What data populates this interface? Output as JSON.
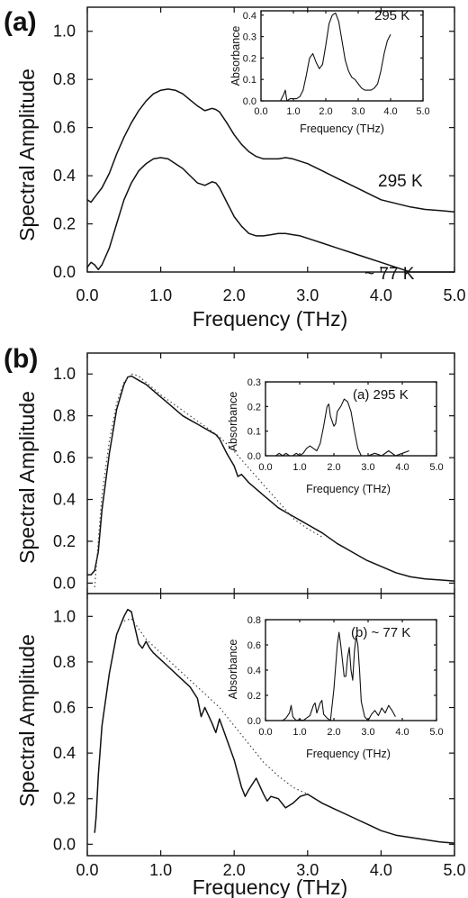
{
  "figure": {
    "panel_a_label": "(a)",
    "panel_b_label": "(b)"
  },
  "chart_data": [
    {
      "id": "a-main",
      "type": "line",
      "xlabel": "Frequency (THz)",
      "ylabel": "Spectral Amplitude",
      "xlim": [
        0,
        5
      ],
      "ylim": [
        0,
        1.1
      ],
      "xticks": [
        0,
        1,
        2,
        3,
        4,
        5
      ],
      "yticks": [
        0,
        0.2,
        0.4,
        0.6,
        0.8,
        1.0
      ],
      "xtick_labels": [
        "0.0",
        "1.0",
        "2.0",
        "3.0",
        "4.0",
        "5.0"
      ],
      "ytick_labels": [
        "0.0",
        "0.2",
        "0.4",
        "0.6",
        "0.8",
        "1.0"
      ],
      "annotations": [
        "295 K",
        "~ 77 K"
      ],
      "grid": false,
      "series": [
        {
          "x": [
            0,
            0.05,
            0.1,
            0.15,
            0.2,
            0.3,
            0.4,
            0.5,
            0.6,
            0.7,
            0.8,
            0.9,
            1.0,
            1.1,
            1.2,
            1.3,
            1.4,
            1.5,
            1.6,
            1.7,
            1.75,
            1.8,
            1.9,
            2.0,
            2.1,
            2.2,
            2.3,
            2.4,
            2.5,
            2.6,
            2.7,
            2.8,
            2.9,
            3.0,
            3.2,
            3.4,
            3.6,
            3.8,
            4.0,
            4.2,
            4.4,
            4.6,
            4.8,
            5.0
          ],
          "y": [
            0.3,
            0.29,
            0.31,
            0.33,
            0.35,
            0.41,
            0.49,
            0.56,
            0.62,
            0.67,
            0.71,
            0.74,
            0.755,
            0.76,
            0.755,
            0.74,
            0.715,
            0.69,
            0.67,
            0.68,
            0.675,
            0.665,
            0.62,
            0.57,
            0.53,
            0.5,
            0.48,
            0.47,
            0.47,
            0.47,
            0.475,
            0.47,
            0.46,
            0.45,
            0.42,
            0.39,
            0.36,
            0.33,
            0.3,
            0.285,
            0.27,
            0.26,
            0.255,
            0.25
          ]
        },
        {
          "x": [
            0,
            0.05,
            0.1,
            0.15,
            0.2,
            0.3,
            0.4,
            0.5,
            0.6,
            0.7,
            0.8,
            0.9,
            1.0,
            1.1,
            1.2,
            1.3,
            1.4,
            1.5,
            1.6,
            1.7,
            1.75,
            1.8,
            1.9,
            2.0,
            2.1,
            2.2,
            2.3,
            2.4,
            2.5,
            2.6,
            2.7,
            2.8,
            2.9,
            3.0,
            3.2,
            3.4,
            3.6,
            3.8,
            4.0,
            4.2,
            4.4,
            4.6,
            4.8,
            5.0
          ],
          "y": [
            0.02,
            0.04,
            0.03,
            0.01,
            0.03,
            0.1,
            0.2,
            0.3,
            0.37,
            0.42,
            0.45,
            0.47,
            0.475,
            0.47,
            0.45,
            0.43,
            0.4,
            0.37,
            0.36,
            0.375,
            0.37,
            0.35,
            0.29,
            0.23,
            0.19,
            0.16,
            0.15,
            0.15,
            0.155,
            0.16,
            0.16,
            0.155,
            0.15,
            0.14,
            0.12,
            0.1,
            0.08,
            0.06,
            0.04,
            0.02,
            0.0,
            0.0,
            0.0,
            0.0
          ]
        }
      ]
    },
    {
      "id": "a-inset",
      "type": "line",
      "xlabel": "Frequency (THz)",
      "ylabel": "Absorbance",
      "xlim": [
        0,
        5
      ],
      "ylim": [
        0,
        0.42
      ],
      "xticks": [
        0,
        1,
        2,
        3,
        4,
        5
      ],
      "yticks": [
        0,
        0.1,
        0.2,
        0.3,
        0.4
      ],
      "xtick_labels": [
        "0.0",
        "1.0",
        "2.0",
        "3.0",
        "4.0",
        "5.0"
      ],
      "ytick_labels": [
        "0.0",
        "0.1",
        "0.2",
        "0.3",
        "0.4"
      ],
      "annotations": [
        "295 K"
      ],
      "series": [
        {
          "x": [
            0.6,
            0.7,
            0.75,
            0.8,
            0.9,
            1.0,
            1.1,
            1.2,
            1.3,
            1.4,
            1.5,
            1.6,
            1.7,
            1.8,
            1.9,
            2.0,
            2.1,
            2.2,
            2.3,
            2.4,
            2.5,
            2.6,
            2.7,
            2.8,
            2.9,
            3.0,
            3.1,
            3.2,
            3.3,
            3.4,
            3.5,
            3.6,
            3.7,
            3.8,
            3.9,
            4.0
          ],
          "y": [
            0.0,
            0.03,
            0.05,
            0.0,
            0.01,
            0.01,
            0.01,
            0.02,
            0.05,
            0.12,
            0.2,
            0.22,
            0.18,
            0.15,
            0.17,
            0.26,
            0.36,
            0.4,
            0.41,
            0.37,
            0.28,
            0.19,
            0.14,
            0.11,
            0.1,
            0.08,
            0.06,
            0.05,
            0.05,
            0.05,
            0.06,
            0.08,
            0.14,
            0.22,
            0.28,
            0.31
          ]
        }
      ]
    },
    {
      "id": "b-top",
      "type": "line",
      "xlabel": "",
      "ylabel": "Spectral Amplitude",
      "xlim": [
        0,
        5
      ],
      "ylim": [
        -0.05,
        1.1
      ],
      "xticks": [
        0,
        1,
        2,
        3,
        4,
        5
      ],
      "yticks": [
        0,
        0.2,
        0.4,
        0.6,
        0.8,
        1.0
      ],
      "xtick_labels": [],
      "ytick_labels": [
        "0.0",
        "0.2",
        "0.4",
        "0.6",
        "0.8",
        "1.0"
      ],
      "series": [
        {
          "x": [
            0,
            0.05,
            0.1,
            0.15,
            0.2,
            0.3,
            0.4,
            0.5,
            0.55,
            0.6,
            0.7,
            0.8,
            0.9,
            1.0,
            1.1,
            1.2,
            1.3,
            1.4,
            1.5,
            1.6,
            1.7,
            1.75,
            1.8,
            1.9,
            2.0,
            2.05,
            2.1,
            2.2,
            2.3,
            2.4,
            2.5,
            2.6,
            2.7,
            2.8,
            2.9,
            3.0,
            3.2,
            3.4,
            3.6,
            3.8,
            4.0,
            4.2,
            4.4,
            4.6,
            4.8,
            5.0
          ],
          "y": [
            0.04,
            0.04,
            0.06,
            0.15,
            0.35,
            0.62,
            0.83,
            0.95,
            0.985,
            0.99,
            0.97,
            0.95,
            0.92,
            0.89,
            0.86,
            0.83,
            0.8,
            0.78,
            0.76,
            0.74,
            0.72,
            0.71,
            0.69,
            0.62,
            0.56,
            0.51,
            0.52,
            0.48,
            0.45,
            0.42,
            0.39,
            0.36,
            0.34,
            0.32,
            0.3,
            0.28,
            0.24,
            0.19,
            0.15,
            0.11,
            0.08,
            0.05,
            0.03,
            0.02,
            0.015,
            0.01
          ]
        },
        {
          "x": [
            0.1,
            0.15,
            0.2,
            0.3,
            0.4,
            0.5,
            0.6,
            0.7,
            0.8,
            1.0,
            1.2,
            1.4,
            1.6,
            1.8,
            2.0,
            2.2,
            2.4,
            2.6,
            2.8,
            3.0,
            3.2
          ],
          "y": [
            -0.02,
            0.2,
            0.42,
            0.68,
            0.86,
            0.96,
            1.0,
            0.99,
            0.96,
            0.9,
            0.85,
            0.8,
            0.75,
            0.7,
            0.63,
            0.55,
            0.47,
            0.39,
            0.31,
            0.26,
            0.22
          ]
        }
      ]
    },
    {
      "id": "b-top-inset",
      "type": "line",
      "xlabel": "Frequency (THz)",
      "ylabel": "Absorbance",
      "xlim": [
        0,
        5
      ],
      "ylim": [
        0,
        0.3
      ],
      "xticks": [
        0,
        1,
        2,
        3,
        4,
        5
      ],
      "yticks": [
        0,
        0.1,
        0.2,
        0.3
      ],
      "xtick_labels": [
        "0.0",
        "1.0",
        "2.0",
        "3.0",
        "4.0",
        "5.0"
      ],
      "ytick_labels": [
        "0.0",
        "0.1",
        "0.2",
        "0.3"
      ],
      "annotations": [
        "(a) 295 K"
      ],
      "series": [
        {
          "x": [
            0.3,
            0.4,
            0.5,
            0.6,
            0.7,
            0.8,
            0.9,
            1.0,
            1.1,
            1.2,
            1.3,
            1.4,
            1.5,
            1.6,
            1.7,
            1.8,
            1.85,
            1.9,
            2.0,
            2.05,
            2.1,
            2.2,
            2.3,
            2.4,
            2.5,
            2.6,
            2.7,
            2.8,
            2.9,
            3.0,
            3.2,
            3.4,
            3.6,
            3.8,
            4.0,
            4.2
          ],
          "y": [
            0.0,
            0.01,
            0.0,
            0.01,
            0.0,
            0.0,
            0.01,
            0.0,
            0.01,
            0.03,
            0.04,
            0.03,
            0.02,
            0.05,
            0.12,
            0.2,
            0.21,
            0.16,
            0.12,
            0.13,
            0.18,
            0.2,
            0.23,
            0.22,
            0.18,
            0.1,
            0.03,
            0.0,
            0.0,
            0.0,
            0.01,
            0.0,
            0.02,
            0.0,
            0.01,
            0.02
          ]
        }
      ]
    },
    {
      "id": "b-bottom",
      "type": "line",
      "xlabel": "Frequency (THz)",
      "ylabel": "Spectral Amplitude",
      "xlim": [
        0,
        5
      ],
      "ylim": [
        -0.05,
        1.1
      ],
      "xticks": [
        0,
        1,
        2,
        3,
        4,
        5
      ],
      "yticks": [
        0,
        0.2,
        0.4,
        0.6,
        0.8,
        1.0
      ],
      "xtick_labels": [
        "0.0",
        "1.0",
        "2.0",
        "3.0",
        "4.0",
        "5.0"
      ],
      "ytick_labels": [
        "0.0",
        "0.2",
        "0.4",
        "0.6",
        "0.8",
        "1.0"
      ],
      "series": [
        {
          "x": [
            0.1,
            0.12,
            0.15,
            0.2,
            0.3,
            0.4,
            0.5,
            0.55,
            0.6,
            0.65,
            0.7,
            0.75,
            0.8,
            0.85,
            0.9,
            1.0,
            1.1,
            1.2,
            1.3,
            1.4,
            1.5,
            1.55,
            1.6,
            1.7,
            1.75,
            1.8,
            1.9,
            2.0,
            2.1,
            2.15,
            2.2,
            2.3,
            2.4,
            2.45,
            2.5,
            2.6,
            2.7,
            2.8,
            2.9,
            3.0,
            3.2,
            3.4,
            3.6,
            3.8,
            4.0,
            4.2,
            4.4,
            4.6,
            4.8,
            5.0
          ],
          "y": [
            0.05,
            0.12,
            0.3,
            0.52,
            0.75,
            0.92,
            1.0,
            1.03,
            1.02,
            0.95,
            0.88,
            0.86,
            0.89,
            0.86,
            0.84,
            0.81,
            0.78,
            0.75,
            0.72,
            0.69,
            0.64,
            0.56,
            0.6,
            0.53,
            0.49,
            0.55,
            0.46,
            0.37,
            0.25,
            0.21,
            0.24,
            0.29,
            0.22,
            0.19,
            0.21,
            0.2,
            0.16,
            0.18,
            0.21,
            0.22,
            0.18,
            0.15,
            0.12,
            0.09,
            0.06,
            0.04,
            0.03,
            0.02,
            0.01,
            0.005
          ]
        },
        {
          "x": [
            0.5,
            0.6,
            0.8,
            1.0,
            1.2,
            1.4,
            1.6,
            1.8,
            2.0,
            2.2,
            2.4,
            2.6,
            2.8,
            3.0
          ],
          "y": [
            0.98,
            0.99,
            0.9,
            0.84,
            0.78,
            0.72,
            0.66,
            0.6,
            0.52,
            0.44,
            0.36,
            0.3,
            0.25,
            0.22
          ]
        }
      ]
    },
    {
      "id": "b-bottom-inset",
      "type": "line",
      "xlabel": "Frequency (THz)",
      "ylabel": "Absorbance",
      "xlim": [
        0,
        5
      ],
      "ylim": [
        0,
        0.8
      ],
      "xticks": [
        0,
        1,
        2,
        3,
        4,
        5
      ],
      "yticks": [
        0,
        0.2,
        0.4,
        0.6,
        0.8
      ],
      "xtick_labels": [
        "0.0",
        "1.0",
        "2.0",
        "3.0",
        "4.0",
        "5.0"
      ],
      "ytick_labels": [
        "0.0",
        "0.2",
        "0.4",
        "0.6",
        "0.8"
      ],
      "annotations": [
        "(b) ~ 77 K"
      ],
      "series": [
        {
          "x": [
            0.5,
            0.6,
            0.7,
            0.75,
            0.8,
            0.9,
            1.0,
            1.1,
            1.2,
            1.3,
            1.4,
            1.45,
            1.5,
            1.6,
            1.65,
            1.7,
            1.8,
            1.9,
            2.0,
            2.1,
            2.15,
            2.2,
            2.3,
            2.35,
            2.4,
            2.45,
            2.5,
            2.55,
            2.6,
            2.65,
            2.7,
            2.75,
            2.8,
            2.9,
            3.0,
            3.1,
            3.2,
            3.3,
            3.4,
            3.5,
            3.6,
            3.7,
            3.8
          ],
          "y": [
            0.0,
            0.02,
            0.06,
            0.12,
            0.03,
            0.0,
            0.01,
            0.0,
            0.02,
            0.04,
            0.12,
            0.14,
            0.06,
            0.14,
            0.16,
            0.05,
            0.02,
            0.0,
            0.25,
            0.6,
            0.7,
            0.6,
            0.35,
            0.35,
            0.5,
            0.58,
            0.4,
            0.32,
            0.55,
            0.67,
            0.6,
            0.4,
            0.15,
            0.03,
            0.0,
            0.05,
            0.08,
            0.04,
            0.1,
            0.06,
            0.12,
            0.08,
            0.03
          ]
        }
      ]
    }
  ]
}
